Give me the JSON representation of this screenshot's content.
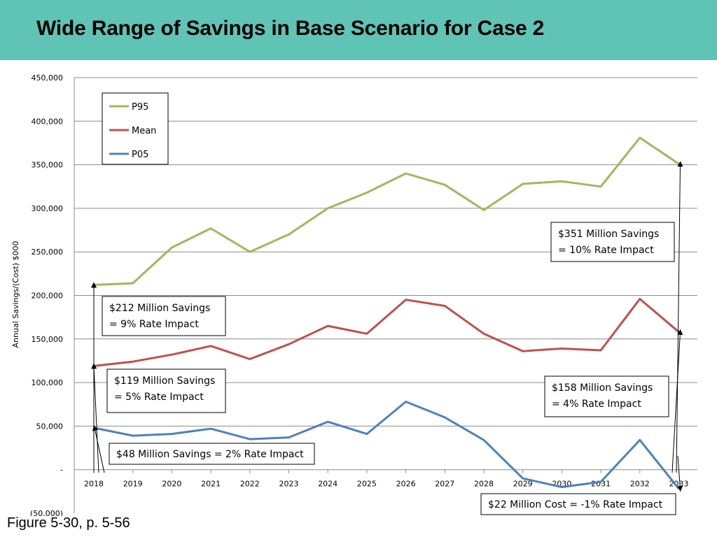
{
  "title": "Wide Range of Savings in Base Scenario for Case 2",
  "caption": "Figure 5-30, p. 5-56",
  "chart_data": {
    "type": "line",
    "ylabel": "Annual Savings/(Cost) $000",
    "xlabel": "",
    "ylim": [
      -50000,
      450000
    ],
    "yticks": [
      -50000,
      0,
      50000,
      100000,
      150000,
      200000,
      250000,
      300000,
      350000,
      400000,
      450000
    ],
    "ytick_labels": [
      "(50,000)",
      "-",
      "50,000",
      "100,000",
      "150,000",
      "200,000",
      "250,000",
      "300,000",
      "350,000",
      "400,000",
      "450,000"
    ],
    "categories": [
      "2018",
      "2019",
      "2020",
      "2021",
      "2022",
      "2023",
      "2024",
      "2025",
      "2026",
      "2027",
      "2028",
      "2029",
      "2030",
      "2031",
      "2032",
      "2033"
    ],
    "grid": true,
    "legend_position": "top-left",
    "series": [
      {
        "name": "P95",
        "color": "#9bbb59",
        "values": [
          212000,
          214000,
          255000,
          277000,
          250000,
          270000,
          300000,
          318000,
          340000,
          327000,
          298000,
          328000,
          331000,
          325000,
          381000,
          351000
        ]
      },
      {
        "name": "Mean",
        "color": "#c0504d",
        "values": [
          119000,
          124000,
          132000,
          142000,
          127000,
          144000,
          165000,
          156000,
          195000,
          188000,
          156000,
          136000,
          139000,
          137000,
          196000,
          158000
        ]
      },
      {
        "name": "P05",
        "color": "#4f81bd",
        "values": [
          48000,
          39000,
          41000,
          47000,
          35000,
          37000,
          55000,
          41000,
          78000,
          60000,
          34000,
          -10000,
          -20000,
          -14000,
          34000,
          -22000
        ]
      }
    ],
    "annotations": [
      {
        "lines": [
          "$212 Million Savings",
          "= 9% Rate Impact"
        ]
      },
      {
        "lines": [
          "$119 Million Savings",
          "= 5% Rate Impact"
        ]
      },
      {
        "lines": [
          "$48 Million Savings = 2% Rate Impact"
        ]
      },
      {
        "lines": [
          "$351 Million Savings",
          "= 10% Rate Impact"
        ]
      },
      {
        "lines": [
          "$158 Million Savings",
          "= 4% Rate Impact"
        ]
      },
      {
        "lines": [
          "$22 Million Cost = -1% Rate Impact"
        ]
      }
    ]
  }
}
